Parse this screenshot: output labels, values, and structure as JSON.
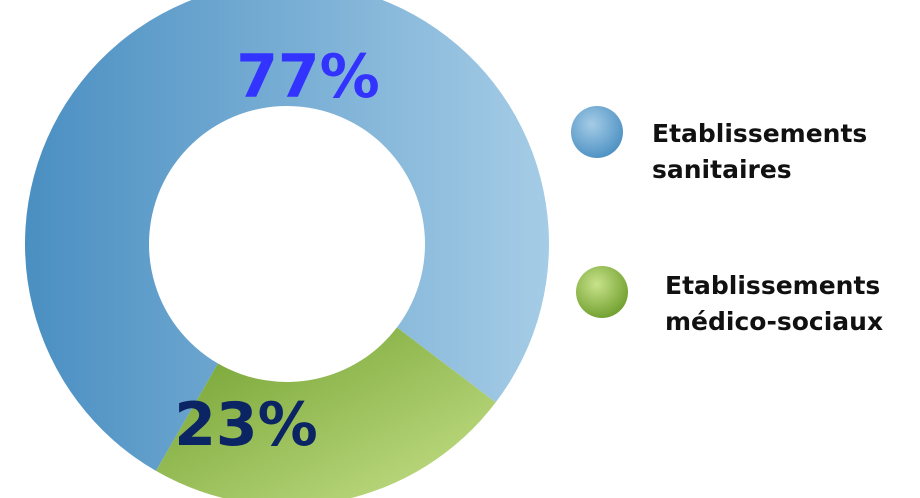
{
  "chart_data": {
    "type": "donut",
    "title": "",
    "legend_position": "right",
    "slices": [
      {
        "label": "Etablissements\nsanitaires",
        "value": 77,
        "value_label": "77%",
        "label_color": "#3333ff",
        "color_dark": "#4a8fc2",
        "color_light": "#a5cce6"
      },
      {
        "label": "Etablissements\nmédico-sociaux",
        "value": 23,
        "value_label": "23%",
        "label_color": "#0b2463",
        "color_dark": "#6e9e2c",
        "color_light": "#c8e28b"
      }
    ]
  }
}
